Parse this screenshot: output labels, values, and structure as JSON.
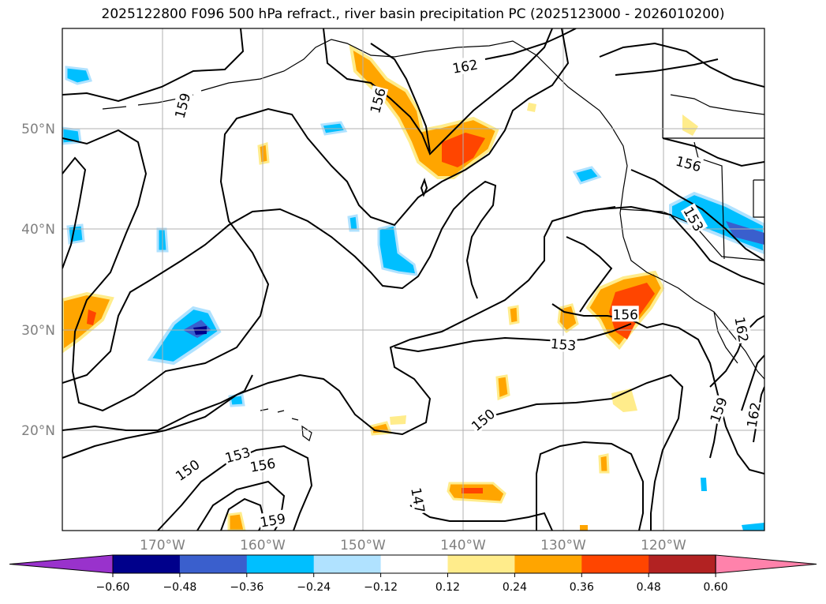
{
  "title": "2025122800 F096 500 hPa refract., river basin precipitation PC (2025123000 - 2026010200)",
  "lat_labels": [
    {
      "lat": 50,
      "label": "50°N"
    },
    {
      "lat": 40,
      "label": "40°N"
    },
    {
      "lat": 30,
      "label": "30°N"
    },
    {
      "lat": 20,
      "label": "20°N"
    }
  ],
  "lon_labels": [
    {
      "lon": -170,
      "label": "170°W"
    },
    {
      "lon": -160,
      "label": "160°W"
    },
    {
      "lon": -150,
      "label": "150°W"
    },
    {
      "lon": -140,
      "label": "140°W"
    },
    {
      "lon": -130,
      "label": "130°W"
    },
    {
      "lon": -120,
      "label": "120°W"
    }
  ],
  "contour_labels": [
    {
      "text": "162",
      "lon": -139.8,
      "lat": 56.2,
      "angle": -10
    },
    {
      "text": "159",
      "lon": -168.0,
      "lat": 52.3,
      "angle": -75
    },
    {
      "text": "156",
      "lon": -148.5,
      "lat": 52.8,
      "angle": -75
    },
    {
      "text": "156",
      "lon": -117.5,
      "lat": 46.5,
      "angle": 15
    },
    {
      "text": "153",
      "lon": -117.0,
      "lat": 41.0,
      "angle": 60
    },
    {
      "text": "156",
      "lon": -123.8,
      "lat": 31.5,
      "angle": 0
    },
    {
      "text": "153",
      "lon": -130.0,
      "lat": 28.5,
      "angle": 5
    },
    {
      "text": "162",
      "lon": -112.2,
      "lat": 30.0,
      "angle": 80
    },
    {
      "text": "150",
      "lon": -138.0,
      "lat": 21.0,
      "angle": -40
    },
    {
      "text": "159",
      "lon": -114.5,
      "lat": 22.0,
      "angle": -70
    },
    {
      "text": "162",
      "lon": -111.0,
      "lat": 21.5,
      "angle": -80
    },
    {
      "text": "150",
      "lon": -167.5,
      "lat": 16.0,
      "angle": -35
    },
    {
      "text": "153",
      "lon": -162.5,
      "lat": 17.5,
      "angle": -15
    },
    {
      "text": "156",
      "lon": -160.0,
      "lat": 16.5,
      "angle": -10
    },
    {
      "text": "147",
      "lon": -144.5,
      "lat": 13.0,
      "angle": 80
    },
    {
      "text": "159",
      "lon": -159.0,
      "lat": 11.0,
      "angle": -10
    }
  ],
  "colorbar": {
    "ticks": [
      "−0.60",
      "−0.48",
      "−0.36",
      "−0.24",
      "−0.12",
      "0.12",
      "0.24",
      "0.36",
      "0.48",
      "0.60"
    ],
    "colors": [
      "#9932CC",
      "#00008B",
      "#3A5FCD",
      "#00BFFF",
      "#B0E2FF",
      "#FFFFFF",
      "#FFEC8B",
      "#FFA500",
      "#FF4500",
      "#B22222",
      "#FF82AB"
    ]
  }
}
